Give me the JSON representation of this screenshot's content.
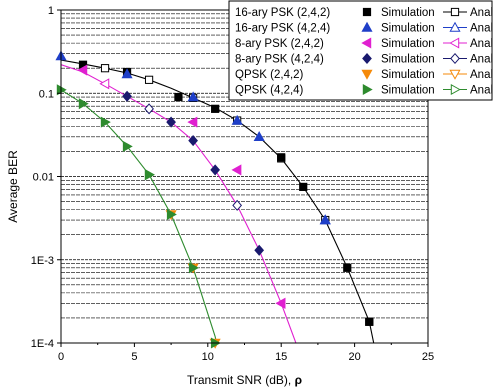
{
  "chart_data": {
    "type": "line",
    "xlabel": "Transmit SNR (dB), ",
    "xlabel_symbol": "ρ",
    "ylabel": "Average BER",
    "xlim": [
      0,
      25
    ],
    "ylim": [
      0.0001,
      1
    ],
    "yscale": "log",
    "x_ticks": [
      "0",
      "5",
      "10",
      "15",
      "20",
      "25"
    ],
    "y_ticks": [
      "1E-4",
      "1E-3",
      "0.01",
      "0.1",
      "1"
    ],
    "grid": "horizontal minor lines",
    "legend": {
      "placement": "top-right",
      "simulation_label": "Simulation",
      "analysis_label": "Analysis"
    },
    "series": [
      {
        "name": "16-ary PSK (2,4,2)",
        "color": "#000000",
        "marker": "square",
        "sim_x": [
          1.5,
          4.5,
          8.0,
          10.5,
          15.0,
          16.5,
          19.5,
          21.0
        ],
        "sim_y": [
          0.22,
          0.18,
          0.09,
          0.065,
          0.017,
          0.0075,
          0.0008,
          0.00018
        ],
        "ana_x": [
          0.0,
          1.5,
          3.0,
          4.5,
          6.0,
          7.5,
          9.0,
          10.5,
          12.0,
          13.5,
          15.0,
          16.5,
          18.0,
          19.5,
          21.0,
          21.3
        ],
        "ana_y": [
          0.25,
          0.225,
          0.2,
          0.175,
          0.145,
          0.115,
          0.088,
          0.067,
          0.047,
          0.03,
          0.0165,
          0.0075,
          0.003,
          0.0008,
          0.00018,
          0.0001
        ],
        "ana_marker_x": [
          3.0,
          6.0,
          9.0,
          12.0,
          15.0,
          18.0,
          21.0
        ],
        "ana_marker_y": [
          0.2,
          0.145,
          0.088,
          0.047,
          0.0165,
          0.003,
          0.00018
        ]
      },
      {
        "name": "16-ary PSK (4,2,4)",
        "color": "#1f3fc8",
        "marker": "triangle-up",
        "sim_x": [
          0.0,
          4.5,
          9.0,
          12.0,
          13.5,
          18.0
        ],
        "sim_y": [
          0.28,
          0.17,
          0.09,
          0.047,
          0.03,
          0.003
        ],
        "ana_x": [],
        "ana_y": [],
        "ana_marker_x": [
          18.0
        ],
        "ana_marker_y": [
          0.003
        ]
      },
      {
        "name": "8-ary PSK (2,4,2)",
        "color": "#e020d0",
        "marker": "triangle-left",
        "sim_x": [
          1.5,
          9.0,
          12.0,
          15.0
        ],
        "sim_y": [
          0.19,
          0.045,
          0.012,
          0.0003
        ],
        "ana_x": [
          0.0,
          1.5,
          3.0,
          4.5,
          6.0,
          7.5,
          9.0,
          10.5,
          12.0,
          13.5,
          15.0,
          16.0
        ],
        "ana_y": [
          0.22,
          0.18,
          0.13,
          0.092,
          0.065,
          0.045,
          0.027,
          0.012,
          0.0045,
          0.0013,
          0.0003,
          0.0001
        ],
        "ana_marker_x": [
          3.0,
          15.0
        ],
        "ana_marker_y": [
          0.13,
          0.0003
        ]
      },
      {
        "name": "8-ary PSK (4,2,4)",
        "color": "#1a1a6e",
        "marker": "diamond",
        "sim_x": [
          4.5,
          7.5,
          9.0,
          10.5,
          13.5
        ],
        "sim_y": [
          0.092,
          0.045,
          0.027,
          0.012,
          0.0013
        ],
        "ana_x": [],
        "ana_y": [],
        "ana_marker_x": [
          6.0,
          12.0
        ],
        "ana_marker_y": [
          0.065,
          0.0045
        ]
      },
      {
        "name": "QPSK (2,4,2)",
        "color": "#f58a0a",
        "marker": "triangle-down",
        "sim_x": [
          7.5,
          9.0,
          10.5
        ],
        "sim_y": [
          0.0035,
          0.0008,
          0.0001
        ],
        "ana_x": [],
        "ana_y": [],
        "ana_marker_x": [],
        "ana_marker_y": []
      },
      {
        "name": "QPSK (4,2,4)",
        "color": "#2e8b2e",
        "marker": "triangle-right",
        "sim_x": [
          0.0,
          1.5,
          3.0,
          4.5,
          6.0,
          7.5,
          9.0,
          10.5
        ],
        "sim_y": [
          0.11,
          0.075,
          0.045,
          0.023,
          0.0105,
          0.0035,
          0.0008,
          0.0001
        ],
        "ana_x": [
          0.0,
          1.5,
          3.0,
          4.5,
          6.0,
          7.5,
          9.0,
          10.5,
          10.6
        ],
        "ana_y": [
          0.11,
          0.075,
          0.045,
          0.023,
          0.0105,
          0.0035,
          0.0008,
          0.00012,
          0.0001
        ],
        "ana_marker_x": [
          6.0
        ],
        "ana_marker_y": [
          0.0105
        ]
      }
    ]
  }
}
